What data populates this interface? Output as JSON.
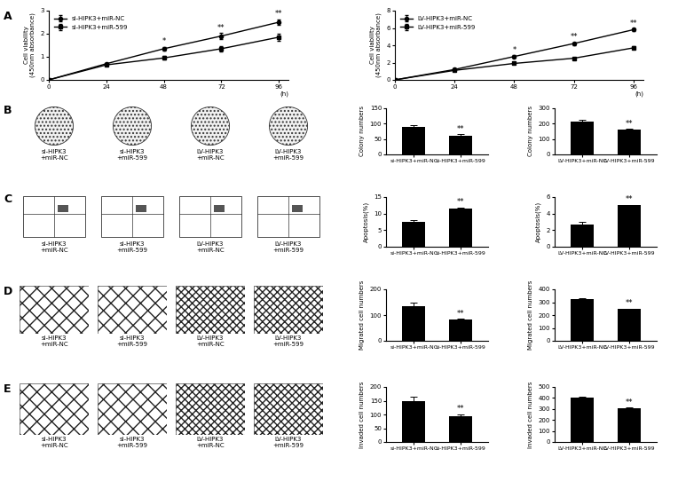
{
  "panel_labels": [
    "A",
    "B",
    "C",
    "D",
    "E"
  ],
  "image_panels": [
    [
      "si-HIPK3\n+miR-NC",
      "si-HIPK3\n+miR-599",
      "LV-HIPK3\n+miR-NC",
      "LV-HIPK3\n+miR-599"
    ],
    [
      "si-HIPK3\n+miR-NC",
      "si-HIPK3\n+miR-599",
      "LV-HIPK3\n+miR-NC",
      "LV-HIPK3\n+miR-599"
    ],
    [
      "si-HIPK3\n+miR-NC",
      "si-HIPK3\n+miR-599",
      "LV-HIPK3\n+miR-NC",
      "LV-HIPK3\n+miR-599"
    ],
    [
      "si-HIPK3\n+miR-NC",
      "si-HIPK3\n+miR-599",
      "LV-HIPK3\n+miR-NC",
      "LV-HIPK3\n+miR-599"
    ]
  ],
  "chart_data": [
    {
      "type": "line",
      "y_label": "Cell viability\n(450nm absorbance)",
      "x_label": "(h)",
      "x": [
        0,
        24,
        48,
        72,
        96
      ],
      "xlim": [
        0,
        100
      ],
      "xticks": [
        0,
        24,
        48,
        72,
        96
      ],
      "ylim": [
        0,
        3
      ],
      "yticks": [
        0,
        1,
        2,
        3
      ],
      "legend": "upper left",
      "series": [
        {
          "name": "si-HIPK3+miR-NC",
          "color": "#000000",
          "marker": "circle",
          "values": [
            0,
            0.7,
            1.35,
            1.9,
            2.5
          ],
          "errors": [
            0,
            0.05,
            0.08,
            0.12,
            0.12
          ]
        },
        {
          "name": "si-HIPK3+miR-599",
          "color": "#000000",
          "marker": "square",
          "values": [
            0,
            0.65,
            0.95,
            1.35,
            1.85
          ],
          "errors": [
            0,
            0.05,
            0.08,
            0.1,
            0.15
          ]
        }
      ],
      "annotations": [
        {
          "x": 48,
          "text": "*"
        },
        {
          "x": 72,
          "text": "**"
        },
        {
          "x": 96,
          "text": "**"
        }
      ]
    },
    {
      "type": "line",
      "y_label": "Cell viability\n(450nm absorbance)",
      "x_label": "(h)",
      "x": [
        0,
        24,
        48,
        72,
        96
      ],
      "xlim": [
        0,
        100
      ],
      "xticks": [
        0,
        24,
        48,
        72,
        96
      ],
      "ylim": [
        0,
        8
      ],
      "yticks": [
        0,
        2,
        4,
        6,
        8
      ],
      "legend": "upper left",
      "series": [
        {
          "name": "LV-HIPK3+miR-NC",
          "color": "#000000",
          "marker": "circle",
          "values": [
            0,
            1.2,
            2.7,
            4.2,
            5.8
          ],
          "errors": [
            0,
            0.1,
            0.15,
            0.15,
            0.15
          ]
        },
        {
          "name": "LV-HIPK3+miR-599",
          "color": "#000000",
          "marker": "square",
          "values": [
            0,
            1.1,
            1.9,
            2.5,
            3.7
          ],
          "errors": [
            0,
            0.1,
            0.1,
            0.1,
            0.15
          ]
        }
      ],
      "annotations": [
        {
          "x": 48,
          "text": "*"
        },
        {
          "x": 72,
          "text": "**"
        },
        {
          "x": 96,
          "text": "**"
        }
      ]
    },
    {
      "type": "bar",
      "y_label": "Colony numbers",
      "categories": [
        "si-HIPK3+miR-NC",
        "si-HIPK3+miR-599"
      ],
      "values": [
        90,
        62
      ],
      "errors": [
        5,
        3
      ],
      "color": "#000000",
      "ylim": [
        0,
        150
      ],
      "yticks": [
        0,
        50,
        100,
        150
      ],
      "annotations": [
        {
          "category": "si-HIPK3+miR-599",
          "text": "**"
        }
      ]
    },
    {
      "type": "bar",
      "y_label": "Colony numbers",
      "categories": [
        "LV-HIPK3+miR-NC",
        "LV-HIPK3+miR-599"
      ],
      "values": [
        212,
        160
      ],
      "errors": [
        15,
        5
      ],
      "color": "#000000",
      "ylim": [
        0,
        300
      ],
      "yticks": [
        0,
        100,
        200,
        300
      ],
      "annotations": [
        {
          "category": "LV-HIPK3+miR-599",
          "text": "**"
        }
      ]
    },
    {
      "type": "bar",
      "y_label": "Apoptosis(%)",
      "categories": [
        "si-HIPK3+miR-NC",
        "si-HIPK3+miR-599"
      ],
      "values": [
        7.6,
        11.6
      ],
      "errors": [
        0.4,
        0.3
      ],
      "color": "#000000",
      "ylim": [
        0,
        15
      ],
      "yticks": [
        0,
        5,
        10,
        15
      ],
      "annotations": [
        {
          "category": "si-HIPK3+miR-599",
          "text": "**"
        }
      ]
    },
    {
      "type": "bar",
      "y_label": "Apoptosis(%)",
      "categories": [
        "LV-HIPK3+miR-NC",
        "LV-HIPK3+miR-599"
      ],
      "values": [
        2.7,
        5.0
      ],
      "errors": [
        0.3,
        0.08
      ],
      "color": "#000000",
      "ylim": [
        0,
        6
      ],
      "yticks": [
        0,
        2,
        4,
        6
      ],
      "annotations": [
        {
          "category": "LV-HIPK3+miR-599",
          "text": "**"
        }
      ]
    },
    {
      "type": "bar",
      "y_label": "Migrated cell numbers",
      "categories": [
        "si-HIPK3+miR-NC",
        "si-HIPK3+miR-599"
      ],
      "values": [
        135,
        82
      ],
      "errors": [
        12,
        4
      ],
      "color": "#000000",
      "ylim": [
        0,
        200
      ],
      "yticks": [
        0,
        100,
        200
      ],
      "annotations": [
        {
          "category": "si-HIPK3+miR-599",
          "text": "**"
        }
      ]
    },
    {
      "type": "bar",
      "y_label": "Migrated cell numbers",
      "categories": [
        "LV-HIPK3+miR-NC",
        "LV-HIPK3+miR-599"
      ],
      "values": [
        322,
        245
      ],
      "errors": [
        10,
        6
      ],
      "color": "#000000",
      "ylim": [
        0,
        400
      ],
      "yticks": [
        0,
        100,
        200,
        300,
        400
      ],
      "annotations": [
        {
          "category": "LV-HIPK3+miR-599",
          "text": "**"
        }
      ]
    },
    {
      "type": "bar",
      "y_label": "Invaded cell numbers",
      "categories": [
        "si-HIPK3+miR-NC",
        "si-HIPK3+miR-599"
      ],
      "values": [
        150,
        95
      ],
      "errors": [
        14,
        6
      ],
      "color": "#000000",
      "ylim": [
        0,
        200
      ],
      "yticks": [
        0,
        50,
        100,
        150,
        200
      ],
      "annotations": [
        {
          "category": "si-HIPK3+miR-599",
          "text": "**"
        }
      ]
    },
    {
      "type": "bar",
      "y_label": "Invaded cell numbers",
      "categories": [
        "LV-HIPK3+miR-NC",
        "LV-HIPK3+miR-599"
      ],
      "values": [
        405,
        308
      ],
      "errors": [
        8,
        6
      ],
      "color": "#000000",
      "ylim": [
        0,
        500
      ],
      "yticks": [
        0,
        100,
        200,
        300,
        400,
        500
      ],
      "annotations": [
        {
          "category": "LV-HIPK3+miR-599",
          "text": "**"
        }
      ]
    }
  ]
}
